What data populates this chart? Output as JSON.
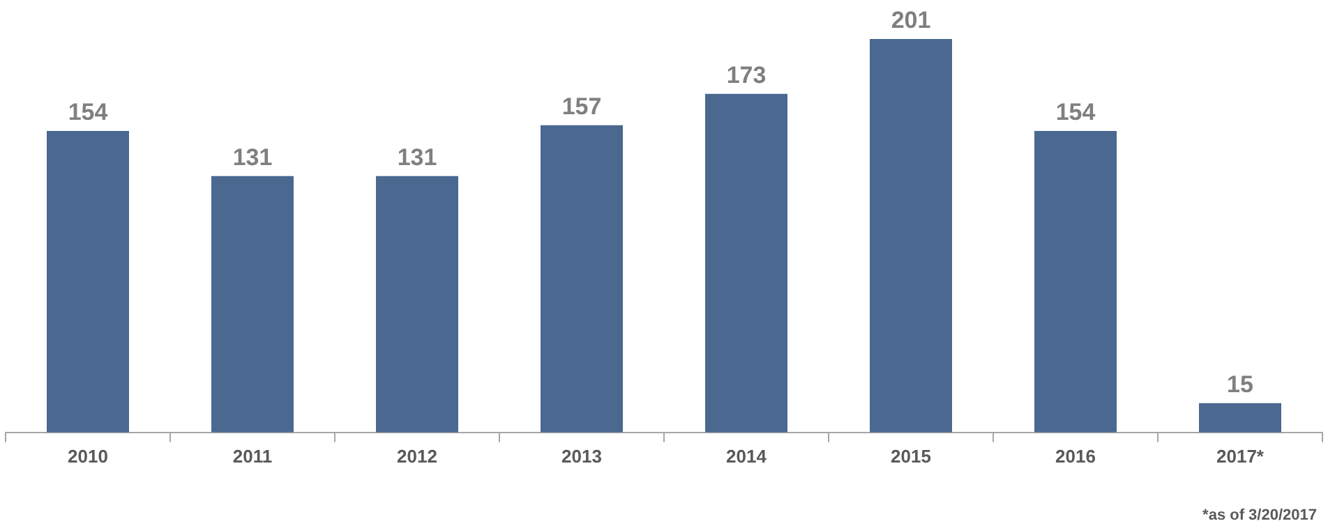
{
  "chart_data": {
    "type": "bar",
    "categories": [
      "2010",
      "2011",
      "2012",
      "2013",
      "2014",
      "2015",
      "2016",
      "2017*"
    ],
    "values": [
      154,
      131,
      131,
      157,
      173,
      201,
      154,
      15
    ],
    "color": "#4a6890",
    "data_labels": true,
    "annotations": [
      "*as of 3/20/2017"
    ]
  }
}
